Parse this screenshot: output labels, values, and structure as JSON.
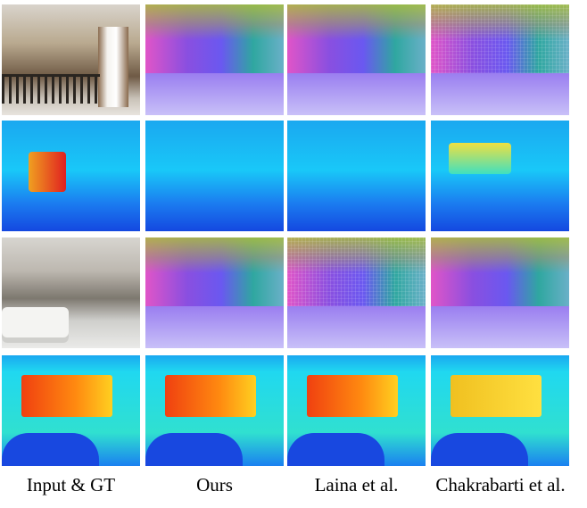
{
  "columns": [
    "Input & GT",
    "Ours",
    "Laina et al.",
    "Chakrabarti et al."
  ]
}
